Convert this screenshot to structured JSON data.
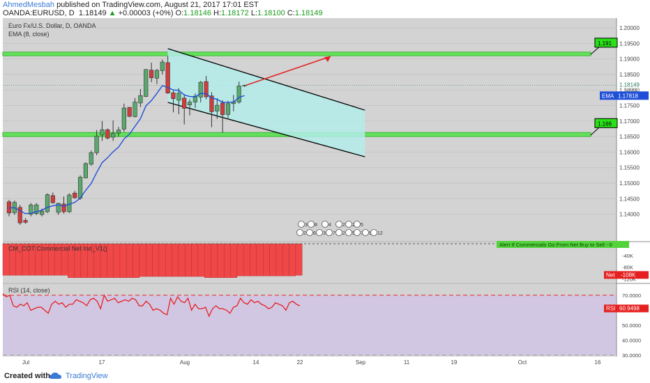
{
  "header": {
    "author": "AhmedMesbah",
    "published": "published on TradingView.com, August 21, 2017 17:01 EST",
    "symbol": "OANDA:EURUSD, D",
    "last": "1.18149",
    "change": "+0.00003 (+0%)",
    "o_label": "O:",
    "o": "1.18146",
    "h_label": "H:",
    "h": "1.18172",
    "l_label": "L:",
    "l": "1.18100",
    "c_label": "C:",
    "c": "1.18149"
  },
  "legend": {
    "title": "Euro Fx/U.S. Dollar, D, OANDA",
    "ema": "EMA (8, close)"
  },
  "price_axis": {
    "ticks": [
      "1.20000",
      "1.19500",
      "1.19000",
      "1.18500",
      "1.18000",
      "1.17500",
      "1.17000",
      "1.16500",
      "1.16000",
      "1.15500",
      "1.15000",
      "1.14500",
      "1.14000"
    ],
    "last_price_label": "1.18149",
    "last_price_sub": "1.18000",
    "ema_tag": "EMA",
    "ema_value": "1.17818",
    "resistance_label": "1.191",
    "support_label": "1.166"
  },
  "cot_panel": {
    "title": "CM_COT Commercial Net Ind_V1()",
    "alert": "Alert If Commercials Go From Net Buy to Sell - 0",
    "ticks": [
      "-40K",
      "-80K",
      "-120K"
    ],
    "net_tag": "Net",
    "net_value": "-108K",
    "bars": [
      -108,
      -108,
      -108,
      -108,
      -108,
      -108,
      -108,
      -108,
      -108,
      -108,
      -116,
      -116,
      -116,
      -116,
      -116,
      -116,
      -116,
      -116,
      -116,
      -116,
      -116,
      -112,
      -112,
      -112,
      -112,
      -112,
      -112,
      -112,
      -112,
      -112,
      -112,
      -116,
      -116,
      -116,
      -116,
      -116,
      -110,
      -110,
      -110,
      -110,
      -110,
      -110,
      -110,
      -110,
      -110,
      -108
    ]
  },
  "rsi_panel": {
    "title": "RSI (14, close)",
    "ticks": [
      "70.0000",
      "60.0000",
      "50.0000",
      "40.0000",
      "30.0000"
    ],
    "rsi_tag": "RSI",
    "rsi_value": "60.9498",
    "values": [
      71,
      69,
      70,
      63,
      62,
      64,
      63,
      65,
      60,
      61,
      62,
      62,
      60,
      58,
      64,
      66,
      64,
      65,
      62,
      64,
      64,
      67,
      66,
      65,
      63,
      67,
      68,
      66,
      61,
      70,
      66,
      67,
      68,
      65,
      66,
      67,
      66,
      68,
      67,
      63,
      63,
      66,
      64,
      60,
      61,
      60,
      58,
      57,
      68,
      64,
      69,
      66,
      65,
      68,
      60,
      64,
      61,
      61,
      62,
      56,
      61,
      63,
      61,
      61,
      60,
      58,
      62,
      63,
      68,
      65,
      64,
      67,
      65,
      66,
      64,
      63,
      61,
      62,
      65,
      64,
      63,
      60,
      65,
      66,
      64,
      63
    ]
  },
  "time_axis": {
    "labels": [
      "Jul",
      "17",
      "Aug",
      "14",
      "22",
      "Sep",
      "11",
      "19",
      "Oct",
      "16"
    ]
  },
  "events": {
    "row1": [
      "3",
      "8",
      "4",
      "2",
      "2",
      "5"
    ],
    "row2": [
      "2",
      "6",
      "3",
      "7",
      "2",
      "5",
      "7",
      "9",
      "12"
    ]
  },
  "footer": {
    "created_with": "Created with",
    "brand": "TradingView"
  },
  "colors": {
    "chart_bg": "#d3d3d3",
    "up": "#5aa86e",
    "down": "#d23c3c",
    "zone": "#63e15b",
    "channel": "#b3ecea",
    "ema_line": "#1f4fd8",
    "rsi_line": "#e52020",
    "rsi_bg": "#d2c7e3",
    "arrow": "#e52020",
    "label_bg": "#2ab800"
  },
  "chart_data": {
    "type": "candlestick",
    "symbol": "EURUSD",
    "timeframe": "D",
    "price_range": [
      1.137,
      1.2025
    ],
    "candles": [
      {
        "o": 1.144,
        "h": 1.1446,
        "l": 1.1393,
        "c": 1.1404
      },
      {
        "o": 1.1405,
        "h": 1.1444,
        "l": 1.1398,
        "c": 1.1438
      },
      {
        "o": 1.1422,
        "h": 1.143,
        "l": 1.1366,
        "c": 1.1372
      },
      {
        "o": 1.138,
        "h": 1.1387,
        "l": 1.1369,
        "c": 1.1374
      },
      {
        "o": 1.14,
        "h": 1.1436,
        "l": 1.1393,
        "c": 1.143
      },
      {
        "o": 1.1402,
        "h": 1.1436,
        "l": 1.1397,
        "c": 1.143
      },
      {
        "o": 1.1399,
        "h": 1.1418,
        "l": 1.1393,
        "c": 1.141
      },
      {
        "o": 1.1408,
        "h": 1.1467,
        "l": 1.1404,
        "c": 1.1463
      },
      {
        "o": 1.146,
        "h": 1.147,
        "l": 1.1434,
        "c": 1.1437
      },
      {
        "o": 1.1406,
        "h": 1.1437,
        "l": 1.1398,
        "c": 1.1435
      },
      {
        "o": 1.1433,
        "h": 1.1457,
        "l": 1.1402,
        "c": 1.1408
      },
      {
        "o": 1.1408,
        "h": 1.1467,
        "l": 1.1404,
        "c": 1.1462
      },
      {
        "o": 1.1468,
        "h": 1.1475,
        "l": 1.145,
        "c": 1.1453
      },
      {
        "o": 1.1452,
        "h": 1.1525,
        "l": 1.1446,
        "c": 1.1519
      },
      {
        "o": 1.1517,
        "h": 1.1567,
        "l": 1.1515,
        "c": 1.1563
      },
      {
        "o": 1.1561,
        "h": 1.1605,
        "l": 1.1556,
        "c": 1.1598
      },
      {
        "o": 1.1598,
        "h": 1.1671,
        "l": 1.159,
        "c": 1.1651
      },
      {
        "o": 1.1655,
        "h": 1.17,
        "l": 1.1636,
        "c": 1.1672
      },
      {
        "o": 1.1672,
        "h": 1.1676,
        "l": 1.1641,
        "c": 1.1645
      },
      {
        "o": 1.1648,
        "h": 1.1702,
        "l": 1.1636,
        "c": 1.166
      },
      {
        "o": 1.1661,
        "h": 1.1681,
        "l": 1.165,
        "c": 1.1671
      },
      {
        "o": 1.1674,
        "h": 1.1756,
        "l": 1.1665,
        "c": 1.1742
      },
      {
        "o": 1.1744,
        "h": 1.1745,
        "l": 1.1712,
        "c": 1.1715
      },
      {
        "o": 1.1714,
        "h": 1.1774,
        "l": 1.1712,
        "c": 1.1761
      },
      {
        "o": 1.1758,
        "h": 1.1803,
        "l": 1.1745,
        "c": 1.1782
      },
      {
        "o": 1.1779,
        "h": 1.1867,
        "l": 1.1777,
        "c": 1.1866
      },
      {
        "o": 1.1864,
        "h": 1.1888,
        "l": 1.1825,
        "c": 1.1839
      },
      {
        "o": 1.1838,
        "h": 1.1868,
        "l": 1.1819,
        "c": 1.1863
      },
      {
        "o": 1.1862,
        "h": 1.1898,
        "l": 1.185,
        "c": 1.189
      },
      {
        "o": 1.1888,
        "h": 1.1909,
        "l": 1.1788,
        "c": 1.179
      },
      {
        "o": 1.1791,
        "h": 1.1798,
        "l": 1.1728,
        "c": 1.1772
      },
      {
        "o": 1.1767,
        "h": 1.1806,
        "l": 1.1722,
        "c": 1.179
      },
      {
        "o": 1.1774,
        "h": 1.1787,
        "l": 1.1689,
        "c": 1.1741
      },
      {
        "o": 1.1752,
        "h": 1.177,
        "l": 1.1718,
        "c": 1.1761
      },
      {
        "o": 1.1761,
        "h": 1.1789,
        "l": 1.1742,
        "c": 1.178
      },
      {
        "o": 1.1777,
        "h": 1.1829,
        "l": 1.176,
        "c": 1.1825
      },
      {
        "o": 1.1827,
        "h": 1.1845,
        "l": 1.177,
        "c": 1.1778
      },
      {
        "o": 1.1781,
        "h": 1.1793,
        "l": 1.168,
        "c": 1.173
      },
      {
        "o": 1.1732,
        "h": 1.1773,
        "l": 1.1707,
        "c": 1.1751
      },
      {
        "o": 1.1758,
        "h": 1.1767,
        "l": 1.1662,
        "c": 1.172
      },
      {
        "o": 1.1721,
        "h": 1.1765,
        "l": 1.171,
        "c": 1.1756
      },
      {
        "o": 1.1756,
        "h": 1.1784,
        "l": 1.1731,
        "c": 1.1762
      },
      {
        "o": 1.1761,
        "h": 1.1827,
        "l": 1.1756,
        "c": 1.1813
      },
      {
        "o": 1.1814,
        "h": 1.1817,
        "l": 1.181,
        "c": 1.1815
      }
    ],
    "ema": [
      1.142,
      1.1421,
      1.1411,
      1.1402,
      1.1403,
      1.1408,
      1.1413,
      1.1422,
      1.1427,
      1.143,
      1.1426,
      1.1432,
      1.1438,
      1.1452,
      1.1477,
      1.1499,
      1.1534,
      1.1566,
      1.1582,
      1.1601,
      1.1616,
      1.1642,
      1.1658,
      1.1683,
      1.1708,
      1.1749,
      1.1766,
      1.1789,
      1.1814,
      1.1808,
      1.18,
      1.1799,
      1.1784,
      1.1779,
      1.1778,
      1.1789,
      1.1788,
      1.1774,
      1.177,
      1.176,
      1.176,
      1.1761,
      1.1776,
      1.1782
    ],
    "zones": [
      {
        "label": "1.191",
        "from": 1.191,
        "to": 1.1922
      },
      {
        "label": "1.166",
        "from": 1.165,
        "to": 1.1663
      }
    ],
    "channel": {
      "upper": [
        [
          29,
          1.1933
        ],
        [
          65,
          1.1735
        ]
      ],
      "lower": [
        [
          29,
          1.176
        ],
        [
          65,
          1.1585
        ]
      ]
    }
  }
}
